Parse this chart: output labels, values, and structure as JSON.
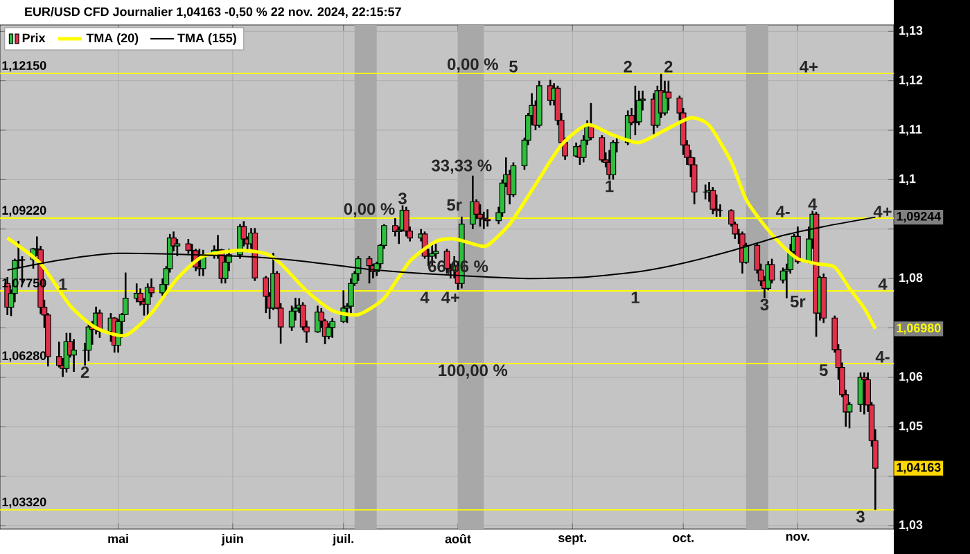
{
  "chart_data": {
    "type": "candlestick",
    "title": "EUR/USD CFD Journalier 1,04163 -0,50 % 22 nov. 2024, 22:15:57",
    "xlim": [
      "2024-03-30",
      "2024-11-27"
    ],
    "xticks": [
      {
        "value": "2024-05-01",
        "label": "mai"
      },
      {
        "value": "2024-06-01",
        "label": "juin"
      },
      {
        "value": "2024-07-01",
        "label": "juil."
      },
      {
        "value": "2024-08-01",
        "label": "août"
      },
      {
        "value": "2024-09-01",
        "label": "sept."
      },
      {
        "value": "2024-10-01",
        "label": "oct."
      },
      {
        "value": "2024-11-01",
        "label": "nov."
      }
    ],
    "ylim": [
      1.0293,
      1.1313
    ],
    "yticks": [
      {
        "value": 1.03,
        "label": "1,03"
      },
      {
        "value": 1.04,
        "label": null
      },
      {
        "value": 1.05,
        "label": "1,05"
      },
      {
        "value": 1.06,
        "label": "1,06"
      },
      {
        "value": 1.07,
        "label": null
      },
      {
        "value": 1.08,
        "label": "1,08"
      },
      {
        "value": 1.09,
        "label": null
      },
      {
        "value": 1.1,
        "label": "1,1"
      },
      {
        "value": 1.11,
        "label": "1,11"
      },
      {
        "value": 1.12,
        "label": "1,12"
      },
      {
        "value": 1.13,
        "label": "1,13"
      }
    ],
    "grid": true,
    "legend": "top left",
    "series": [
      {
        "name": "Prix",
        "x": [
          "2024-04-01",
          "2024-04-02",
          "2024-04-03",
          "2024-04-04",
          "2024-04-05",
          "2024-04-08",
          "2024-04-09",
          "2024-04-10",
          "2024-04-11",
          "2024-04-12",
          "2024-04-15",
          "2024-04-16",
          "2024-04-17",
          "2024-04-18",
          "2024-04-19",
          "2024-04-22",
          "2024-04-23",
          "2024-04-24",
          "2024-04-25",
          "2024-04-26",
          "2024-04-29",
          "2024-04-30",
          "2024-05-01",
          "2024-05-02",
          "2024-05-03",
          "2024-05-06",
          "2024-05-07",
          "2024-05-08",
          "2024-05-09",
          "2024-05-10",
          "2024-05-13",
          "2024-05-14",
          "2024-05-15",
          "2024-05-16",
          "2024-05-17",
          "2024-05-20",
          "2024-05-21",
          "2024-05-22",
          "2024-05-23",
          "2024-05-24",
          "2024-05-27",
          "2024-05-28",
          "2024-05-29",
          "2024-05-30",
          "2024-05-31",
          "2024-06-03",
          "2024-06-04",
          "2024-06-05",
          "2024-06-06",
          "2024-06-07",
          "2024-06-10",
          "2024-06-11",
          "2024-06-12",
          "2024-06-13",
          "2024-06-14",
          "2024-06-17",
          "2024-06-18",
          "2024-06-19",
          "2024-06-20",
          "2024-06-21",
          "2024-06-24",
          "2024-06-25",
          "2024-06-26",
          "2024-06-27",
          "2024-06-28",
          "2024-07-01",
          "2024-07-02",
          "2024-07-03",
          "2024-07-04",
          "2024-07-05",
          "2024-07-08",
          "2024-07-09",
          "2024-07-10",
          "2024-07-11",
          "2024-07-12",
          "2024-07-15",
          "2024-07-16",
          "2024-07-17",
          "2024-07-18",
          "2024-07-19",
          "2024-07-22",
          "2024-07-23",
          "2024-07-24",
          "2024-07-25",
          "2024-07-26",
          "2024-07-29",
          "2024-07-30",
          "2024-07-31",
          "2024-08-01",
          "2024-08-02",
          "2024-08-05",
          "2024-08-06",
          "2024-08-07",
          "2024-08-08",
          "2024-08-09",
          "2024-08-12",
          "2024-08-13",
          "2024-08-14",
          "2024-08-15",
          "2024-08-16",
          "2024-08-19",
          "2024-08-20",
          "2024-08-21",
          "2024-08-22",
          "2024-08-23",
          "2024-08-26",
          "2024-08-27",
          "2024-08-28",
          "2024-08-29",
          "2024-08-30",
          "2024-09-02",
          "2024-09-03",
          "2024-09-04",
          "2024-09-05",
          "2024-09-06",
          "2024-09-09",
          "2024-09-10",
          "2024-09-11",
          "2024-09-12",
          "2024-09-13",
          "2024-09-16",
          "2024-09-17",
          "2024-09-18",
          "2024-09-19",
          "2024-09-20",
          "2024-09-23",
          "2024-09-24",
          "2024-09-25",
          "2024-09-26",
          "2024-09-27",
          "2024-09-30",
          "2024-10-01",
          "2024-10-02",
          "2024-10-03",
          "2024-10-04",
          "2024-10-07",
          "2024-10-08",
          "2024-10-09",
          "2024-10-10",
          "2024-10-11",
          "2024-10-14",
          "2024-10-15",
          "2024-10-16",
          "2024-10-17",
          "2024-10-18",
          "2024-10-21",
          "2024-10-22",
          "2024-10-23",
          "2024-10-24",
          "2024-10-25",
          "2024-10-28",
          "2024-10-29",
          "2024-10-30",
          "2024-10-31",
          "2024-11-01",
          "2024-11-04",
          "2024-11-05",
          "2024-11-06",
          "2024-11-07",
          "2024-11-08",
          "2024-11-11",
          "2024-11-12",
          "2024-11-13",
          "2024-11-14",
          "2024-11-15",
          "2024-11-18",
          "2024-11-19",
          "2024-11-20",
          "2024-11-21",
          "2024-11-22"
        ],
        "ohlc": [
          [
            1.079,
            1.0803,
            1.0726,
            1.0742
          ],
          [
            1.0742,
            1.0778,
            1.0724,
            1.077
          ],
          [
            1.077,
            1.084,
            1.0752,
            1.0836
          ],
          [
            1.0836,
            1.0876,
            1.082,
            1.0837
          ],
          [
            1.0837,
            1.0845,
            1.0791,
            1.0838
          ],
          [
            1.0838,
            1.0862,
            1.082,
            1.086
          ],
          [
            1.086,
            1.0885,
            1.0845,
            1.0858
          ],
          [
            1.0858,
            1.0866,
            1.0728,
            1.0742
          ],
          [
            1.0742,
            1.0757,
            1.07,
            1.0726
          ],
          [
            1.0726,
            1.073,
            1.0622,
            1.0642
          ],
          [
            1.0642,
            1.0672,
            1.062,
            1.0624
          ],
          [
            1.0624,
            1.0639,
            1.0601,
            1.0618
          ],
          [
            1.0618,
            1.069,
            1.061,
            1.0672
          ],
          [
            1.0672,
            1.069,
            1.064,
            1.0645
          ],
          [
            1.0645,
            1.0677,
            1.0611,
            1.0655
          ],
          [
            1.0655,
            1.067,
            1.0624,
            1.0655
          ],
          [
            1.0655,
            1.0714,
            1.0633,
            1.0702
          ],
          [
            1.0702,
            1.0714,
            1.0666,
            1.0697
          ],
          [
            1.0697,
            1.0743,
            1.0687,
            1.073
          ],
          [
            1.073,
            1.0737,
            1.068,
            1.0693
          ],
          [
            1.0693,
            1.073,
            1.0672,
            1.072
          ],
          [
            1.072,
            1.0722,
            1.065,
            1.0665
          ],
          [
            1.0665,
            1.0718,
            1.065,
            1.0713
          ],
          [
            1.0713,
            1.073,
            1.068,
            1.0727
          ],
          [
            1.0727,
            1.0812,
            1.0726,
            1.076
          ],
          [
            1.076,
            1.079,
            1.0752,
            1.077
          ],
          [
            1.077,
            1.078,
            1.0745,
            1.0753
          ],
          [
            1.0753,
            1.076,
            1.0725,
            1.0748
          ],
          [
            1.0748,
            1.079,
            1.0724,
            1.0782
          ],
          [
            1.0782,
            1.08,
            1.0762,
            1.0771
          ],
          [
            1.0771,
            1.08,
            1.0765,
            1.0788
          ],
          [
            1.0788,
            1.0825,
            1.0766,
            1.082
          ],
          [
            1.082,
            1.089,
            1.0812,
            1.0882
          ],
          [
            1.0882,
            1.0895,
            1.0855,
            1.0866
          ],
          [
            1.0866,
            1.088,
            1.0845,
            1.087
          ],
          [
            1.087,
            1.088,
            1.085,
            1.0857
          ],
          [
            1.0857,
            1.087,
            1.0834,
            1.0856
          ],
          [
            1.0856,
            1.086,
            1.0815,
            1.0823
          ],
          [
            1.0823,
            1.086,
            1.0805,
            1.082
          ],
          [
            1.082,
            1.0858,
            1.0805,
            1.0847
          ],
          [
            1.0847,
            1.0867,
            1.084,
            1.0857
          ],
          [
            1.0857,
            1.0888,
            1.084,
            1.0858
          ],
          [
            1.0858,
            1.086,
            1.079,
            1.08
          ],
          [
            1.08,
            1.0845,
            1.079,
            1.0833
          ],
          [
            1.0833,
            1.086,
            1.0815,
            1.0848
          ],
          [
            1.0848,
            1.091,
            1.084,
            1.0905
          ],
          [
            1.0905,
            1.0916,
            1.0865,
            1.088
          ],
          [
            1.088,
            1.0885,
            1.0855,
            1.087
          ],
          [
            1.087,
            1.0902,
            1.086,
            1.0892
          ],
          [
            1.0892,
            1.0902,
            1.0795,
            1.0801
          ],
          [
            1.0801,
            1.0805,
            1.073,
            1.0764
          ],
          [
            1.0764,
            1.0772,
            1.0718,
            1.074
          ],
          [
            1.074,
            1.0852,
            1.0736,
            1.081
          ],
          [
            1.081,
            1.0815,
            1.0738,
            1.074
          ],
          [
            1.074,
            1.075,
            1.0668,
            1.0702
          ],
          [
            1.0702,
            1.0745,
            1.0694,
            1.0734
          ],
          [
            1.0734,
            1.0761,
            1.0715,
            1.074
          ],
          [
            1.074,
            1.076,
            1.073,
            1.0746
          ],
          [
            1.0746,
            1.0752,
            1.0695,
            1.0702
          ],
          [
            1.0702,
            1.0715,
            1.067,
            1.0692
          ],
          [
            1.0692,
            1.0745,
            1.069,
            1.0732
          ],
          [
            1.0732,
            1.074,
            1.07,
            1.0714
          ],
          [
            1.0714,
            1.0718,
            1.0667,
            1.0683
          ],
          [
            1.0683,
            1.071,
            1.0677,
            1.0701
          ],
          [
            1.0701,
            1.072,
            1.068,
            1.0713
          ],
          [
            1.0713,
            1.0776,
            1.071,
            1.074
          ],
          [
            1.074,
            1.075,
            1.071,
            1.0744
          ],
          [
            1.0744,
            1.08,
            1.073,
            1.079
          ],
          [
            1.079,
            1.0815,
            1.0785,
            1.081
          ],
          [
            1.081,
            1.0845,
            1.0795,
            1.084
          ],
          [
            1.084,
            1.0845,
            1.079,
            1.0826
          ],
          [
            1.0826,
            1.083,
            1.08,
            1.0814
          ],
          [
            1.0814,
            1.0834,
            1.0805,
            1.083
          ],
          [
            1.083,
            1.087,
            1.082,
            1.0867
          ],
          [
            1.0867,
            1.091,
            1.086,
            1.0907
          ],
          [
            1.0907,
            1.0922,
            1.0885,
            1.0895
          ],
          [
            1.0895,
            1.0905,
            1.087,
            1.0898
          ],
          [
            1.0898,
            1.0948,
            1.0895,
            1.0938
          ],
          [
            1.0938,
            1.0945,
            1.0885,
            1.0896
          ],
          [
            1.0896,
            1.0905,
            1.0875,
            1.0882
          ],
          [
            1.0882,
            1.09,
            1.0875,
            1.089
          ],
          [
            1.089,
            1.0895,
            1.084,
            1.0845
          ],
          [
            1.0845,
            1.086,
            1.0825,
            1.0845
          ],
          [
            1.0845,
            1.087,
            1.0825,
            1.085
          ],
          [
            1.085,
            1.087,
            1.084,
            1.0855
          ],
          [
            1.0855,
            1.086,
            1.081,
            1.082
          ],
          [
            1.082,
            1.083,
            1.08,
            1.0817
          ],
          [
            1.0817,
            1.0845,
            1.08,
            1.0825
          ],
          [
            1.0825,
            1.0835,
            1.0777,
            1.079
          ],
          [
            1.079,
            1.0925,
            1.078,
            1.091
          ],
          [
            1.091,
            1.1008,
            1.09,
            1.0955
          ],
          [
            1.0955,
            1.096,
            1.092,
            1.093
          ],
          [
            1.093,
            1.095,
            1.0905,
            1.0922
          ],
          [
            1.0922,
            1.0935,
            1.09,
            1.092
          ],
          [
            1.092,
            1.094,
            1.0905,
            1.0917
          ],
          [
            1.0917,
            1.0945,
            1.091,
            1.0933
          ],
          [
            1.0933,
            1.1,
            1.0925,
            1.0993
          ],
          [
            1.0993,
            1.1045,
            1.0985,
            1.101
          ],
          [
            1.101,
            1.102,
            1.095,
            1.097
          ],
          [
            1.097,
            1.1035,
            1.0965,
            1.1028
          ],
          [
            1.1028,
            1.1085,
            1.102,
            1.108
          ],
          [
            1.108,
            1.1135,
            1.107,
            1.113
          ],
          [
            1.113,
            1.1175,
            1.111,
            1.115
          ],
          [
            1.115,
            1.116,
            1.11,
            1.111
          ],
          [
            1.111,
            1.12,
            1.1105,
            1.119
          ],
          [
            1.119,
            1.1202,
            1.115,
            1.116
          ],
          [
            1.116,
            1.1195,
            1.115,
            1.1185
          ],
          [
            1.1185,
            1.119,
            1.111,
            1.112
          ],
          [
            1.112,
            1.1135,
            1.1065,
            1.1075
          ],
          [
            1.1075,
            1.1085,
            1.104,
            1.1048
          ],
          [
            1.1048,
            1.1075,
            1.1045,
            1.1067
          ],
          [
            1.1067,
            1.107,
            1.103,
            1.1045
          ],
          [
            1.1045,
            1.109,
            1.1035,
            1.108
          ],
          [
            1.108,
            1.112,
            1.107,
            1.111
          ],
          [
            1.111,
            1.1155,
            1.108,
            1.1085
          ],
          [
            1.1085,
            1.109,
            1.1035,
            1.104
          ],
          [
            1.104,
            1.1055,
            1.1025,
            1.1035
          ],
          [
            1.1035,
            1.106,
            1.1,
            1.101
          ],
          [
            1.101,
            1.108,
            1.1,
            1.1075
          ],
          [
            1.1075,
            1.109,
            1.1055,
            1.1075
          ],
          [
            1.1075,
            1.114,
            1.107,
            1.113
          ],
          [
            1.113,
            1.1145,
            1.111,
            1.1115
          ],
          [
            1.1115,
            1.119,
            1.109,
            1.1117
          ],
          [
            1.1117,
            1.118,
            1.111,
            1.116
          ],
          [
            1.116,
            1.118,
            1.114,
            1.1163
          ],
          [
            1.1163,
            1.1175,
            1.1085,
            1.111
          ],
          [
            1.111,
            1.119,
            1.1105,
            1.118
          ],
          [
            1.118,
            1.1214,
            1.1125,
            1.1135
          ],
          [
            1.1135,
            1.12,
            1.113,
            1.1177
          ],
          [
            1.1177,
            1.12,
            1.114,
            1.1165
          ],
          [
            1.1165,
            1.117,
            1.112,
            1.1135
          ],
          [
            1.1135,
            1.1145,
            1.105,
            1.107
          ],
          [
            1.107,
            1.108,
            1.103,
            1.1045
          ],
          [
            1.1045,
            1.106,
            1.1005,
            1.103
          ],
          [
            1.103,
            1.1045,
            1.095,
            1.0975
          ],
          [
            1.0975,
            1.099,
            1.096,
            1.0975
          ],
          [
            1.0975,
            1.0995,
            1.0955,
            1.0978
          ],
          [
            1.0978,
            1.0985,
            1.093,
            1.094
          ],
          [
            1.094,
            1.097,
            1.0925,
            1.0937
          ],
          [
            1.0937,
            1.095,
            1.0925,
            1.0937
          ],
          [
            1.0937,
            1.094,
            1.0905,
            1.091
          ],
          [
            1.091,
            1.0915,
            1.088,
            1.089
          ],
          [
            1.089,
            1.09,
            1.087,
            1.089
          ],
          [
            1.089,
            1.0895,
            1.081,
            1.0833
          ],
          [
            1.0833,
            1.0872,
            1.083,
            1.0867
          ],
          [
            1.0867,
            1.087,
            1.081,
            1.0817
          ],
          [
            1.0817,
            1.083,
            1.0785,
            1.0795
          ],
          [
            1.0795,
            1.0805,
            1.0761,
            1.078
          ],
          [
            1.078,
            1.0835,
            1.0776,
            1.0828
          ],
          [
            1.0828,
            1.084,
            1.079,
            1.0797
          ],
          [
            1.0797,
            1.0822,
            1.079,
            1.0815
          ],
          [
            1.0815,
            1.083,
            1.076,
            1.0818
          ],
          [
            1.0818,
            1.087,
            1.081,
            1.0855
          ],
          [
            1.0855,
            1.089,
            1.085,
            1.0885
          ],
          [
            1.0885,
            1.0905,
            1.083,
            1.0834
          ],
          [
            1.0834,
            1.0905,
            1.083,
            1.088
          ],
          [
            1.088,
            1.0937,
            1.086,
            1.093
          ],
          [
            1.093,
            1.0935,
            1.0682,
            1.073
          ],
          [
            1.073,
            1.0805,
            1.0715,
            1.0802
          ],
          [
            1.0802,
            1.081,
            1.071,
            1.072
          ],
          [
            1.072,
            1.0725,
            1.065,
            1.0656
          ],
          [
            1.0656,
            1.0667,
            1.0595,
            1.062
          ],
          [
            1.062,
            1.063,
            1.056,
            1.0565
          ],
          [
            1.0565,
            1.0575,
            1.05,
            1.053
          ],
          [
            1.053,
            1.055,
            1.0497,
            1.0545
          ],
          [
            1.0545,
            1.061,
            1.053,
            1.06
          ],
          [
            1.06,
            1.061,
            1.0525,
            1.0595
          ],
          [
            1.0595,
            1.061,
            1.053,
            1.0544
          ],
          [
            1.0544,
            1.055,
            1.046,
            1.0472
          ],
          [
            1.0472,
            1.0495,
            1.0332,
            1.0416
          ]
        ]
      },
      {
        "name": "TMA (20)",
        "type": "line",
        "color": "#ffff00",
        "x": [
          "2024-04-01",
          "2024-04-10",
          "2024-04-18",
          "2024-04-25",
          "2024-05-03",
          "2024-05-10",
          "2024-05-17",
          "2024-05-24",
          "2024-06-03",
          "2024-06-10",
          "2024-06-14",
          "2024-06-21",
          "2024-06-28",
          "2024-07-05",
          "2024-07-12",
          "2024-07-19",
          "2024-07-26",
          "2024-07-31",
          "2024-08-06",
          "2024-08-09",
          "2024-08-15",
          "2024-08-22",
          "2024-08-29",
          "2024-09-05",
          "2024-09-12",
          "2024-09-19",
          "2024-09-26",
          "2024-10-03",
          "2024-10-08",
          "2024-10-14",
          "2024-10-18",
          "2024-10-23",
          "2024-10-28",
          "2024-11-01",
          "2024-11-06",
          "2024-11-11",
          "2024-11-15",
          "2024-11-19",
          "2024-11-22"
        ],
        "values": [
          1.0882,
          1.083,
          1.0745,
          1.07,
          1.0685,
          1.073,
          1.08,
          1.0845,
          1.0857,
          1.085,
          1.083,
          1.0775,
          1.0735,
          1.0727,
          1.076,
          1.0835,
          1.0875,
          1.088,
          1.0868,
          1.0867,
          1.091,
          1.099,
          1.107,
          1.1111,
          1.109,
          1.1075,
          1.11,
          1.1125,
          1.111,
          1.1036,
          1.096,
          1.0907,
          1.0865,
          1.084,
          1.083,
          1.0823,
          1.078,
          1.074,
          1.0698
        ],
        "value_labels": [
          null,
          null,
          null,
          null,
          null,
          null,
          null,
          null,
          null,
          null,
          null,
          null,
          null,
          null,
          null,
          null,
          null,
          null,
          null,
          null,
          null,
          null,
          null,
          null,
          null,
          null,
          null,
          null,
          null,
          null,
          null,
          null,
          null,
          null,
          null,
          null,
          null,
          null,
          "1,06980"
        ]
      },
      {
        "name": "TMA (155)",
        "type": "line",
        "color": "#000000",
        "x": [
          "2024-04-01",
          "2024-04-15",
          "2024-05-01",
          "2024-06-03",
          "2024-06-20",
          "2024-07-10",
          "2024-08-01",
          "2024-08-20",
          "2024-09-05",
          "2024-09-20",
          "2024-10-01",
          "2024-10-15",
          "2024-10-28",
          "2024-11-08",
          "2024-11-22"
        ],
        "values": [
          1.0817,
          1.0837,
          1.0851,
          1.0845,
          1.0835,
          1.0817,
          1.0806,
          1.08,
          1.0803,
          1.0815,
          1.0831,
          1.0858,
          1.0887,
          1.0905,
          1.0924
        ],
        "value_labels": [
          null,
          null,
          null,
          null,
          null,
          null,
          null,
          null,
          null,
          null,
          null,
          null,
          null,
          null,
          "1,09244"
        ]
      }
    ],
    "ref_lines": [
      {
        "axis": "y",
        "value": 1.1215,
        "label": "1,12150",
        "color": "#ffff00"
      },
      {
        "axis": "y",
        "value": 1.0922,
        "label": "1,09220",
        "color": "#ffff00"
      },
      {
        "axis": "y",
        "value": 1.0775,
        "label": "1,07750",
        "color": "#ffff00"
      },
      {
        "axis": "y",
        "value": 1.0628,
        "label": "1,06280",
        "color": "#ffff00"
      },
      {
        "axis": "y",
        "value": 1.0332,
        "label": "1,03320",
        "color": "#ffff00"
      }
    ],
    "bands": [
      {
        "axis": "x",
        "from": "2024-07-04",
        "to": "2024-07-10",
        "color": "#a8a8a8"
      },
      {
        "axis": "x",
        "from": "2024-08-01",
        "to": "2024-08-08",
        "color": "#a8a8a8"
      },
      {
        "axis": "x",
        "from": "2024-10-18",
        "to": "2024-10-24",
        "color": "#a8a8a8"
      }
    ],
    "annotations": [
      "1,04163",
      {
        "text": "0,00 %",
        "x": "2024-07-08",
        "y": 1.0922
      },
      {
        "text": "0,00 %",
        "x": "2024-08-05",
        "y": 1.1215
      },
      {
        "text": "33,33 %",
        "x": "2024-08-02",
        "y": 1.101
      },
      {
        "text": "66,66 %",
        "x": "2024-08-01",
        "y": 1.0806
      },
      {
        "text": "100,00 %",
        "x": "2024-08-05",
        "y": 1.0628
      },
      {
        "text": "1",
        "x": "2024-04-16",
        "y": 1.0775
      },
      {
        "text": "2",
        "x": "2024-04-22",
        "y": 1.0624
      },
      {
        "text": "3",
        "x": "2024-07-17",
        "y": 1.0948
      },
      {
        "text": "5r",
        "x": "2024-07-31",
        "y": 1.0935
      },
      {
        "text": "4",
        "x": "2024-07-23",
        "y": 1.0775
      },
      {
        "text": "4+",
        "x": "2024-07-30",
        "y": 1.0775
      },
      {
        "text": "5",
        "x": "2024-08-16",
        "y": 1.1215
      },
      {
        "text": "2",
        "x": "2024-09-16",
        "y": 1.1215
      },
      {
        "text": "2",
        "x": "2024-09-27",
        "y": 1.1215
      },
      {
        "text": "1",
        "x": "2024-09-11",
        "y": 1.1
      },
      {
        "text": "1",
        "x": "2024-09-18",
        "y": 1.0775
      },
      {
        "text": "4+",
        "x": "2024-11-04",
        "y": 1.1215
      },
      {
        "text": "4",
        "x": "2024-11-05",
        "y": 1.0937
      },
      {
        "text": "4-",
        "x": "2024-10-28",
        "y": 1.0922
      },
      {
        "text": "3",
        "x": "2024-10-23",
        "y": 1.0761
      },
      {
        "text": "5r",
        "x": "2024-11-01",
        "y": 1.0767
      },
      {
        "text": "5",
        "x": "2024-11-08",
        "y": 1.0628
      },
      {
        "text": "3",
        "x": "2024-11-18",
        "y": 1.0332
      },
      {
        "text": "4+",
        "x": "2024-11-24",
        "y": 1.0922
      },
      {
        "text": "4",
        "x": "2024-11-24",
        "y": 1.0775
      },
      {
        "text": "4-",
        "x": "2024-11-24",
        "y": 1.0628
      }
    ]
  }
}
